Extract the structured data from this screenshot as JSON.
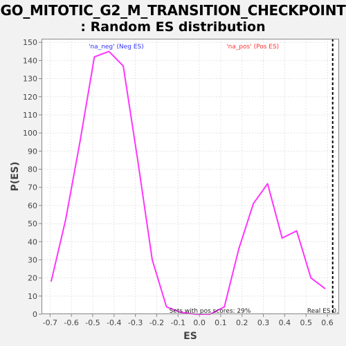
{
  "chart_data": {
    "type": "line",
    "title_line1": "GO_MITOTIC_G2_M_TRANSITION_CHECKPOINT",
    "title_line2": ": Random ES distribution",
    "xlabel": "ES",
    "ylabel": "P(ES)",
    "xlim": [
      -0.74,
      0.655
    ],
    "ylim": [
      0,
      152
    ],
    "x_ticks": [
      -0.7,
      -0.6,
      -0.5,
      -0.4,
      -0.3,
      -0.2,
      -0.1,
      0.0,
      0.1,
      0.2,
      0.3,
      0.4,
      0.5,
      0.6
    ],
    "x_tick_labels": [
      "-0.7",
      "-0.6",
      "-0.5",
      "-0.4",
      "-0.3",
      "-0.2",
      "-0.1",
      "0.0",
      "0.1",
      "0.2",
      "0.3",
      "0.4",
      "0.5",
      "0.6"
    ],
    "y_ticks": [
      0,
      10,
      20,
      30,
      40,
      50,
      60,
      70,
      80,
      90,
      100,
      110,
      120,
      130,
      140,
      150
    ],
    "grid": true,
    "series": [
      {
        "color": "#ff33ff",
        "x": [
          -0.695,
          -0.627,
          -0.56,
          -0.492,
          -0.424,
          -0.357,
          -0.289,
          -0.221,
          -0.154,
          -0.086,
          -0.018,
          0.05,
          0.117,
          0.185,
          0.253,
          0.32,
          0.388,
          0.456,
          0.523,
          0.59
        ],
        "y": [
          18,
          52,
          95,
          142,
          145,
          137,
          85,
          30,
          4,
          1,
          0,
          0,
          4,
          36,
          61,
          72,
          42,
          46,
          20,
          14
        ]
      }
    ],
    "annotations": {
      "neg_label": "'na_neg' (Neg ES)",
      "neg_color": "#3333ff",
      "pos_label": "'na_pos' (Pos ES)",
      "pos_color": "#ff3333",
      "pos_scores_text": "Sets with pos scores: 29%",
      "real_es_label": "Real ES 0.",
      "real_es_value": 0.625
    }
  }
}
